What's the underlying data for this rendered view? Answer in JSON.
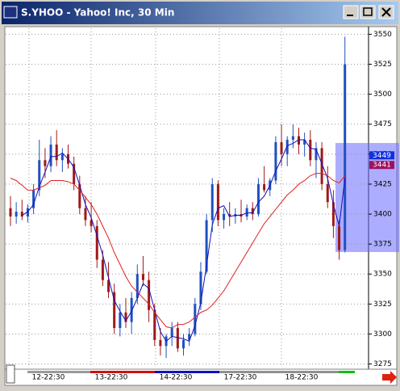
{
  "window": {
    "title": "S.YHOO - Yahoo! Inc, 30 Min"
  },
  "chart_data": {
    "type": "candlestick",
    "open": [
      3405,
      3398,
      3402,
      3398,
      3405,
      3420,
      3445,
      3440,
      3458,
      3445,
      3450,
      3442,
      3425,
      3405,
      3395,
      3390,
      3362,
      3345,
      3335,
      3305,
      3318,
      3310,
      3330,
      3350,
      3345,
      3320,
      3295,
      3290,
      3298,
      3305,
      3288,
      3295,
      3300,
      3325,
      3352,
      3395,
      3425,
      3395,
      3400,
      3398,
      3400,
      3398,
      3405,
      3400,
      3425,
      3420,
      3428,
      3460,
      3450,
      3462,
      3465,
      3458,
      3462,
      3445,
      3455,
      3425,
      3410,
      3390,
      3370
    ],
    "high": [
      3415,
      3410,
      3412,
      3408,
      3425,
      3462,
      3455,
      3465,
      3470,
      3455,
      3458,
      3448,
      3432,
      3415,
      3410,
      3395,
      3370,
      3360,
      3342,
      3325,
      3330,
      3335,
      3358,
      3365,
      3352,
      3325,
      3305,
      3300,
      3310,
      3310,
      3300,
      3305,
      3330,
      3360,
      3400,
      3430,
      3428,
      3405,
      3410,
      3405,
      3412,
      3408,
      3410,
      3430,
      3440,
      3430,
      3465,
      3475,
      3465,
      3475,
      3472,
      3468,
      3470,
      3460,
      3460,
      3440,
      3420,
      3395,
      3548
    ],
    "low": [
      3390,
      3392,
      3395,
      3393,
      3400,
      3415,
      3430,
      3435,
      3440,
      3435,
      3438,
      3420,
      3400,
      3390,
      3385,
      3355,
      3340,
      3330,
      3300,
      3298,
      3305,
      3300,
      3325,
      3340,
      3310,
      3290,
      3282,
      3280,
      3290,
      3285,
      3282,
      3290,
      3298,
      3320,
      3350,
      3385,
      3390,
      3388,
      3390,
      3392,
      3393,
      3395,
      3395,
      3398,
      3418,
      3415,
      3425,
      3440,
      3440,
      3455,
      3450,
      3448,
      3440,
      3430,
      3420,
      3405,
      3380,
      3362,
      3368
    ],
    "close": [
      3398,
      3402,
      3398,
      3405,
      3420,
      3445,
      3440,
      3458,
      3445,
      3450,
      3442,
      3425,
      3405,
      3395,
      3390,
      3362,
      3345,
      3335,
      3305,
      3318,
      3310,
      3330,
      3350,
      3345,
      3320,
      3295,
      3290,
      3298,
      3305,
      3288,
      3295,
      3300,
      3325,
      3352,
      3395,
      3425,
      3395,
      3400,
      3398,
      3400,
      3398,
      3405,
      3400,
      3425,
      3420,
      3428,
      3460,
      3450,
      3462,
      3465,
      3458,
      3462,
      3445,
      3455,
      3425,
      3410,
      3390,
      3370,
      3525
    ],
    "up_color": "#2050c0",
    "down_color": "#a01818",
    "moving_averages": [
      {
        "color": "#1010c0",
        "values": [
          null,
          null,
          3399,
          3402,
          3408,
          3423,
          3435,
          3448,
          3448,
          3451,
          3446,
          3439,
          3424,
          3408,
          3397,
          3382,
          3366,
          3347,
          3328,
          3319,
          3311,
          3319,
          3330,
          3342,
          3338,
          3320,
          3302,
          3294,
          3298,
          3297,
          3296,
          3294,
          3307,
          3326,
          3357,
          3391,
          3405,
          3407,
          3398,
          3399,
          3399,
          3401,
          3401,
          3410,
          3415,
          3424,
          3436,
          3446,
          3457,
          3459,
          3462,
          3462,
          3455,
          3454,
          3442,
          3430,
          3408,
          3390,
          3430
        ]
      },
      {
        "color": "#e02020",
        "values": [
          3430,
          3428,
          3424,
          3420,
          3420,
          3422,
          3424,
          3428,
          3428,
          3428,
          3427,
          3425,
          3420,
          3414,
          3408,
          3400,
          3390,
          3380,
          3368,
          3358,
          3348,
          3340,
          3335,
          3330,
          3325,
          3318,
          3312,
          3306,
          3305,
          3308,
          3308,
          3310,
          3314,
          3318,
          3320,
          3324,
          3330,
          3336,
          3344,
          3352,
          3360,
          3368,
          3376,
          3384,
          3392,
          3398,
          3404,
          3410,
          3416,
          3420,
          3425,
          3428,
          3432,
          3434,
          3434,
          3432,
          3428,
          3426,
          3432
        ]
      }
    ],
    "price_markers": [
      {
        "value": 3449,
        "color": "#1030e0"
      },
      {
        "value": 3441,
        "color": "#a01060"
      }
    ],
    "x_labels": [
      "12-22:30",
      "13-22:30",
      "14-22:30",
      "17-22:30",
      "18-22:30"
    ],
    "ylim": [
      3272,
      3555
    ],
    "yticks": [
      3550,
      3525,
      3500,
      3475,
      3450,
      3425,
      3400,
      3375,
      3350,
      3325,
      3300,
      3275
    ],
    "grid": true
  }
}
